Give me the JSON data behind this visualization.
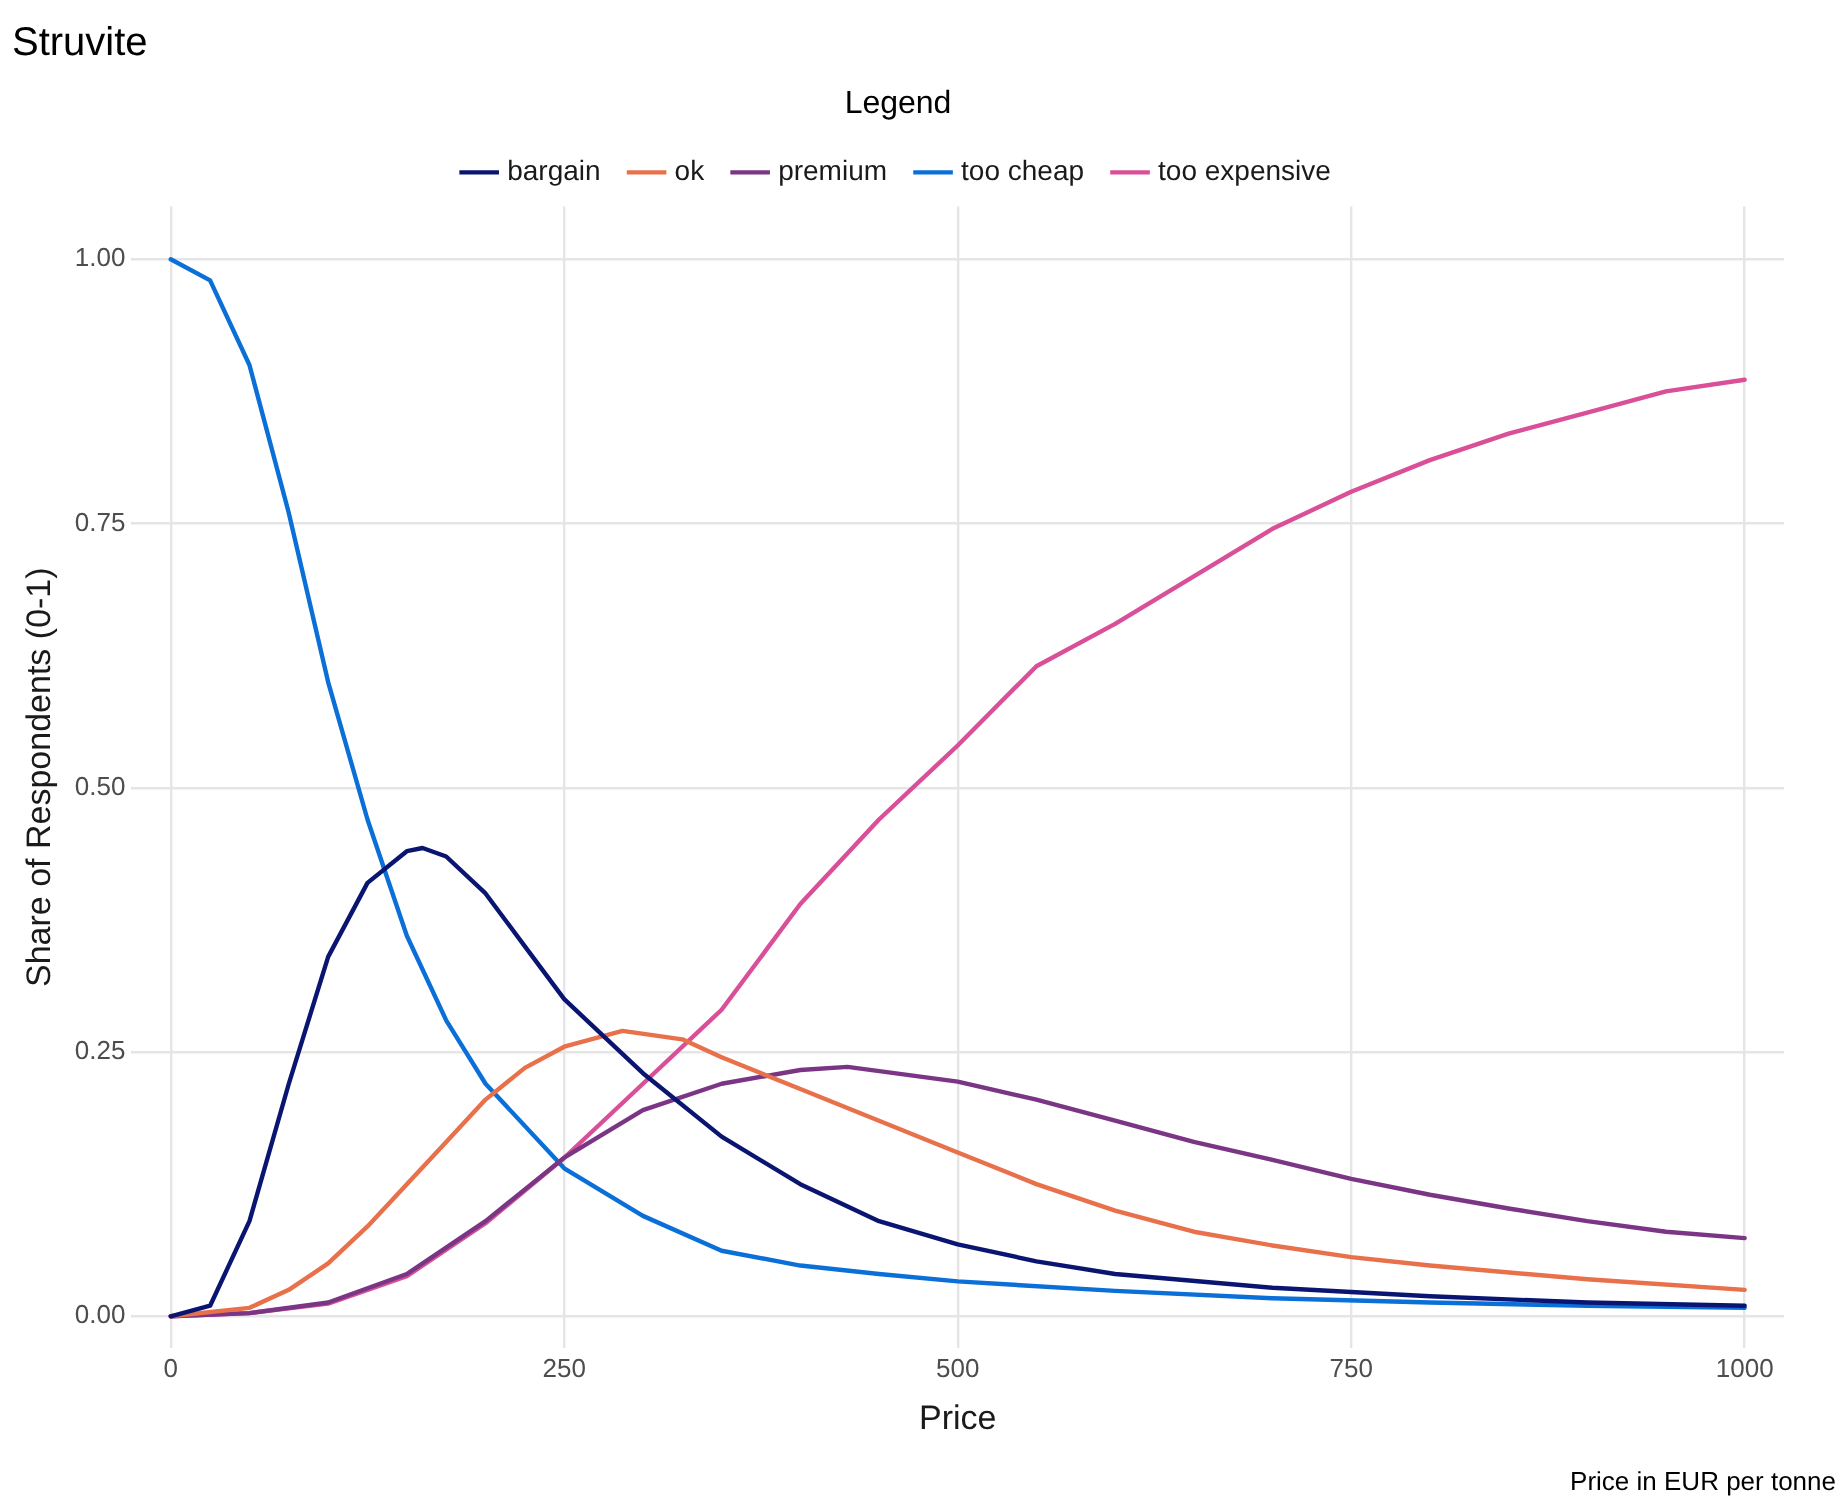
{
  "chart_data": {
    "type": "line",
    "title": "Struvite",
    "xlabel": "Price",
    "ylabel": "Share of Respondents (0-1)",
    "legend_title": "Legend",
    "legend": "top",
    "grid": true,
    "marker": "none",
    "line_style": "solid",
    "annotations": [
      "Price in EUR per tonne"
    ],
    "xlim": [
      -25,
      1025
    ],
    "xticks": [
      0,
      250,
      500,
      750,
      1000
    ],
    "ylim": [
      -0.03,
      1.05
    ],
    "yticks": [
      {
        "value": 0,
        "label": "0.00"
      },
      {
        "value": 0.25,
        "label": "0.25"
      },
      {
        "value": 0.5,
        "label": "0.50"
      },
      {
        "value": 0.75,
        "label": "0.75"
      },
      {
        "value": 1,
        "label": "1.00"
      }
    ],
    "series": [
      {
        "name": "bargain",
        "color": "#0a1572",
        "x": [
          0,
          25,
          50,
          75,
          100,
          125,
          150,
          160,
          175,
          200,
          225,
          250,
          300,
          350,
          400,
          450,
          500,
          550,
          600,
          700,
          800,
          900,
          1000
        ],
        "values": [
          0,
          0.01,
          0.09,
          0.22,
          0.34,
          0.41,
          0.44,
          0.443,
          0.435,
          0.4,
          0.35,
          0.3,
          0.23,
          0.17,
          0.125,
          0.09,
          0.068,
          0.052,
          0.04,
          0.027,
          0.019,
          0.013,
          0.01
        ]
      },
      {
        "name": "ok",
        "color": "#e8704a",
        "x": [
          0,
          50,
          75,
          100,
          125,
          150,
          175,
          200,
          225,
          250,
          287,
          325,
          350,
          400,
          450,
          500,
          550,
          600,
          650,
          700,
          750,
          800,
          900,
          1000
        ],
        "values": [
          0,
          0.008,
          0.025,
          0.05,
          0.085,
          0.125,
          0.165,
          0.205,
          0.235,
          0.255,
          0.27,
          0.262,
          0.245,
          0.215,
          0.185,
          0.155,
          0.125,
          0.1,
          0.08,
          0.067,
          0.056,
          0.048,
          0.035,
          0.025
        ]
      },
      {
        "name": "premium",
        "color": "#7b3585",
        "x": [
          0,
          50,
          100,
          150,
          200,
          250,
          300,
          350,
          400,
          430,
          500,
          550,
          600,
          650,
          700,
          750,
          800,
          850,
          900,
          950,
          1000
        ],
        "values": [
          0,
          0.003,
          0.013,
          0.04,
          0.09,
          0.15,
          0.195,
          0.22,
          0.233,
          0.236,
          0.222,
          0.205,
          0.185,
          0.165,
          0.148,
          0.13,
          0.115,
          0.102,
          0.09,
          0.08,
          0.074
        ]
      },
      {
        "name": "too cheap",
        "color": "#0b6fd8",
        "x": [
          0,
          25,
          50,
          75,
          100,
          125,
          150,
          175,
          200,
          250,
          300,
          350,
          400,
          450,
          500,
          600,
          700,
          800,
          900,
          1000
        ],
        "values": [
          1,
          0.98,
          0.9,
          0.76,
          0.6,
          0.47,
          0.36,
          0.28,
          0.22,
          0.14,
          0.095,
          0.062,
          0.048,
          0.04,
          0.033,
          0.024,
          0.017,
          0.013,
          0.01,
          0.008
        ]
      },
      {
        "name": "too expensive",
        "color": "#d94f98",
        "x": [
          0,
          50,
          100,
          150,
          200,
          250,
          300,
          350,
          400,
          450,
          500,
          550,
          600,
          650,
          700,
          750,
          800,
          850,
          900,
          950,
          1000
        ],
        "values": [
          0,
          0.003,
          0.012,
          0.038,
          0.088,
          0.15,
          0.22,
          0.29,
          0.39,
          0.47,
          0.54,
          0.615,
          0.655,
          0.7,
          0.745,
          0.78,
          0.81,
          0.835,
          0.855,
          0.875,
          0.886
        ]
      }
    ]
  }
}
